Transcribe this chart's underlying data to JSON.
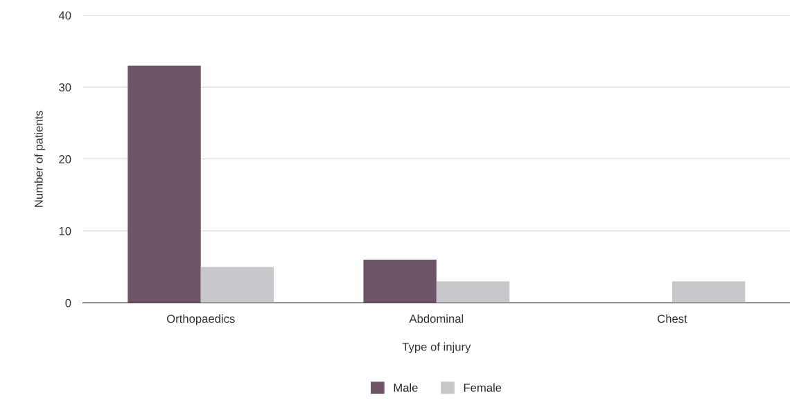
{
  "chart_data": {
    "type": "bar",
    "xlabel": "Type of injury",
    "ylabel": "Number of patients",
    "categories": [
      "Orthopaedics",
      "Abdominal",
      "Chest"
    ],
    "series": [
      {
        "name": "Male",
        "color": "#6e5567",
        "values": [
          33,
          6,
          null
        ]
      },
      {
        "name": "Female",
        "color": "#c8c8cc",
        "values": [
          5,
          3,
          3
        ]
      }
    ],
    "ylim": [
      0,
      40
    ],
    "yticks": [
      0,
      10,
      20,
      30,
      40
    ],
    "grid": "y",
    "legend": "bottom"
  }
}
